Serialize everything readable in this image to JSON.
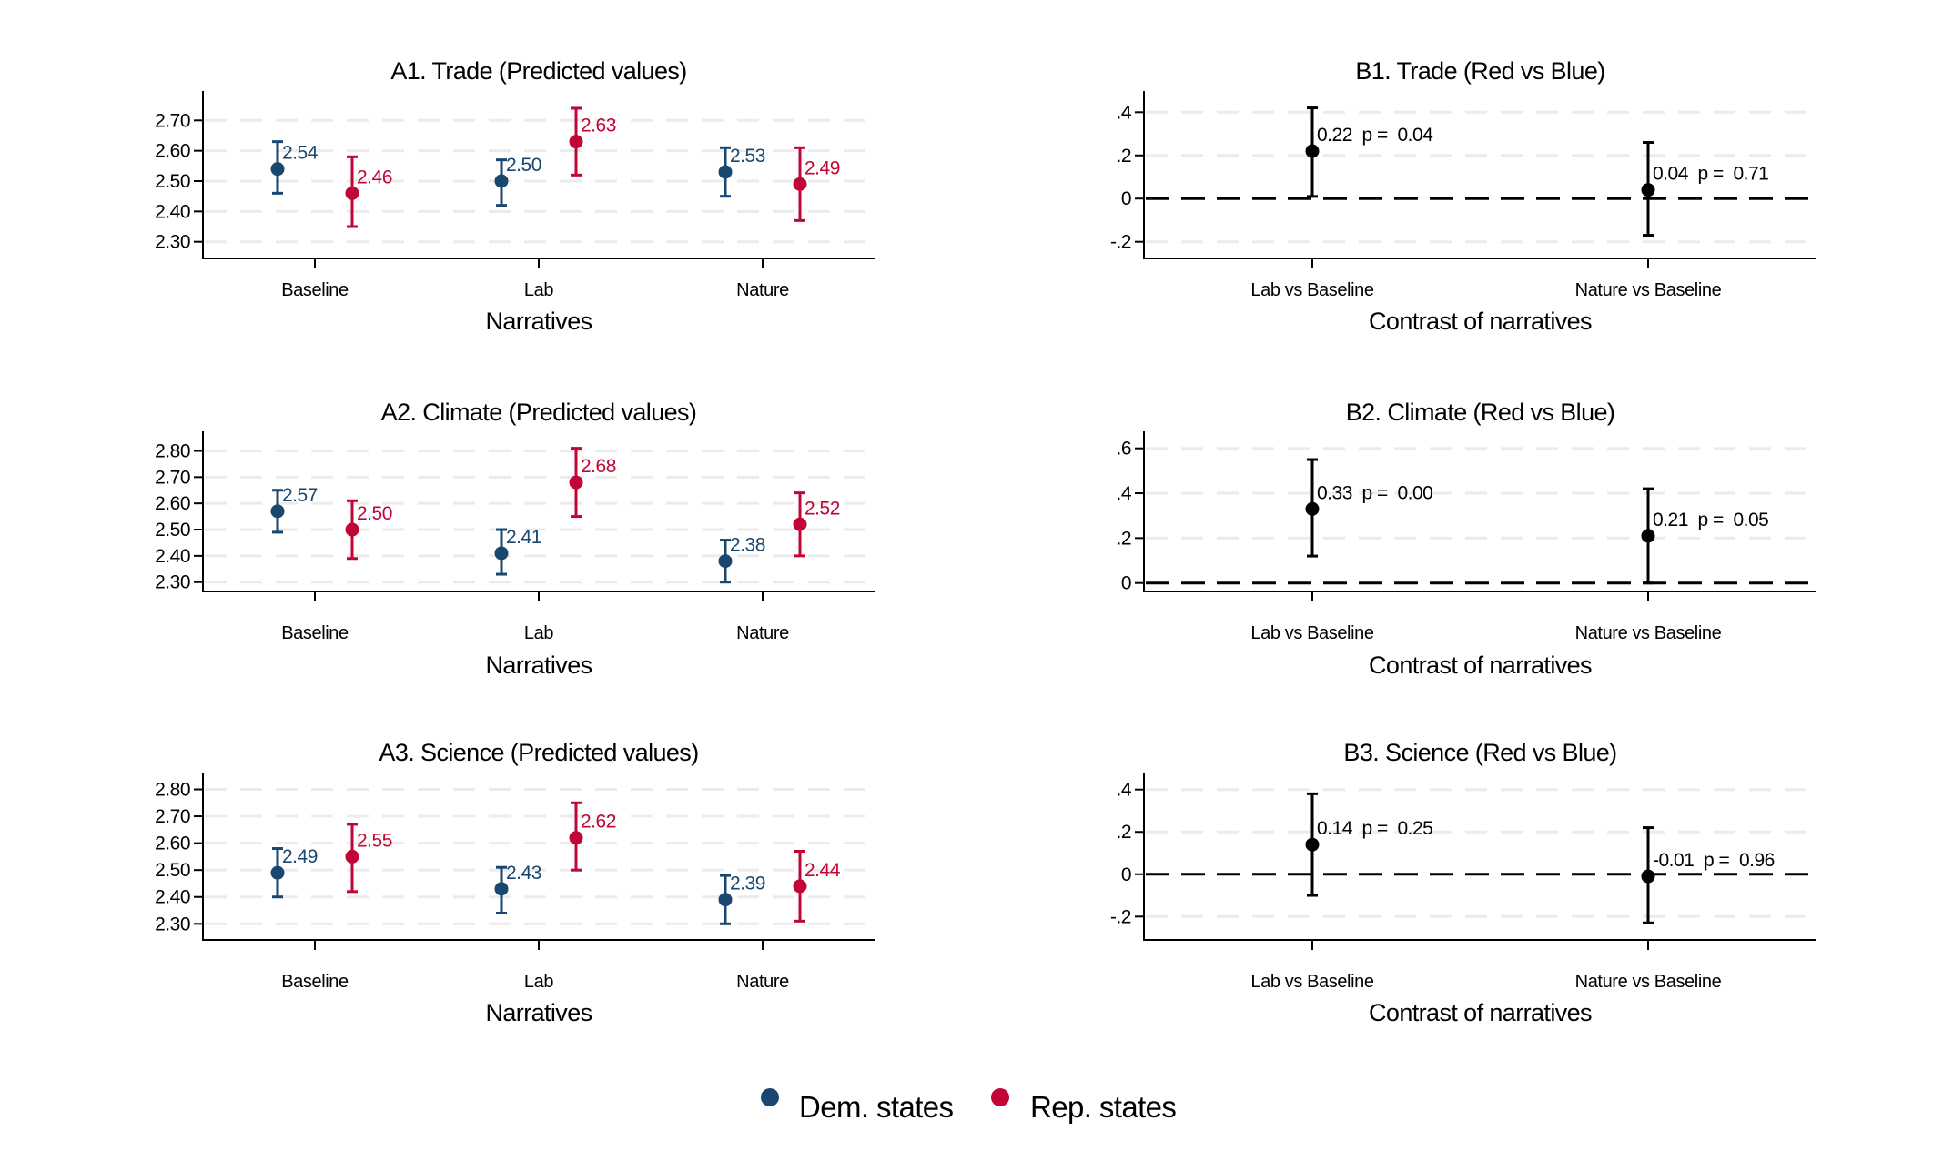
{
  "colors": {
    "dem": "#1a476f",
    "rep": "#c10534",
    "contrast": "#000000"
  },
  "legend": [
    {
      "label": "Dem. states",
      "series": "dem"
    },
    {
      "label": "Rep. states",
      "series": "rep"
    }
  ],
  "chart_data": [
    {
      "id": "A1",
      "type": "scatter-errorbar",
      "title": "A1. Trade (Predicted values)",
      "xlabel": "Narratives",
      "ylabel": "",
      "categories": [
        "Baseline",
        "Lab",
        "Nature"
      ],
      "yticks": [
        2.7,
        2.6,
        2.5,
        2.4,
        2.3
      ],
      "ytick_labels": [
        "2.70",
        "2.60",
        "2.50",
        "2.40",
        "2.30"
      ],
      "grid": true,
      "series": [
        {
          "name": "Dem. states",
          "key": "dem",
          "values": [
            2.54,
            2.5,
            2.53
          ],
          "labels": [
            "2.54",
            "2.50",
            "2.53"
          ],
          "ci_low": [
            2.46,
            2.42,
            2.45
          ],
          "ci_high": [
            2.63,
            2.57,
            2.61
          ]
        },
        {
          "name": "Rep. states",
          "key": "rep",
          "values": [
            2.46,
            2.63,
            2.49
          ],
          "labels": [
            "2.46",
            "2.63",
            "2.49"
          ],
          "ci_low": [
            2.35,
            2.52,
            2.37
          ],
          "ci_high": [
            2.58,
            2.74,
            2.61
          ]
        }
      ]
    },
    {
      "id": "A2",
      "type": "scatter-errorbar",
      "title": "A2. Climate (Predicted values)",
      "xlabel": "Narratives",
      "ylabel": "",
      "categories": [
        "Baseline",
        "Lab",
        "Nature"
      ],
      "yticks": [
        2.8,
        2.7,
        2.6,
        2.5,
        2.4,
        2.3
      ],
      "ytick_labels": [
        "2.80",
        "2.70",
        "2.60",
        "2.50",
        "2.40",
        "2.30"
      ],
      "grid": true,
      "series": [
        {
          "name": "Dem. states",
          "key": "dem",
          "values": [
            2.57,
            2.41,
            2.38
          ],
          "labels": [
            "2.57",
            "2.41",
            "2.38"
          ],
          "ci_low": [
            2.49,
            2.33,
            2.3
          ],
          "ci_high": [
            2.65,
            2.5,
            2.46
          ]
        },
        {
          "name": "Rep. states",
          "key": "rep",
          "values": [
            2.5,
            2.68,
            2.52
          ],
          "labels": [
            "2.50",
            "2.68",
            "2.52"
          ],
          "ci_low": [
            2.39,
            2.55,
            2.4
          ],
          "ci_high": [
            2.61,
            2.81,
            2.64
          ]
        }
      ]
    },
    {
      "id": "A3",
      "type": "scatter-errorbar",
      "title": "A3. Science (Predicted values)",
      "xlabel": "Narratives",
      "ylabel": "",
      "categories": [
        "Baseline",
        "Lab",
        "Nature"
      ],
      "yticks": [
        2.8,
        2.7,
        2.6,
        2.5,
        2.4,
        2.3
      ],
      "ytick_labels": [
        "2.80",
        "2.70",
        "2.60",
        "2.50",
        "2.40",
        "2.30"
      ],
      "grid": true,
      "series": [
        {
          "name": "Dem. states",
          "key": "dem",
          "values": [
            2.49,
            2.43,
            2.39
          ],
          "labels": [
            "2.49",
            "2.43",
            "2.39"
          ],
          "ci_low": [
            2.4,
            2.34,
            2.3
          ],
          "ci_high": [
            2.58,
            2.51,
            2.48
          ]
        },
        {
          "name": "Rep. states",
          "key": "rep",
          "values": [
            2.55,
            2.62,
            2.44
          ],
          "labels": [
            "2.55",
            "2.62",
            "2.44"
          ],
          "ci_low": [
            2.42,
            2.5,
            2.31
          ],
          "ci_high": [
            2.67,
            2.75,
            2.57
          ]
        }
      ]
    },
    {
      "id": "B1",
      "type": "scatter-errorbar",
      "title": "B1. Trade (Red vs Blue)",
      "xlabel": "Contrast of narratives",
      "ylabel": "",
      "categories": [
        "Lab vs Baseline",
        "Nature vs Baseline"
      ],
      "yticks": [
        0.4,
        0.2,
        0,
        -0.2
      ],
      "ytick_labels": [
        ".4",
        ".2",
        "0",
        "-.2"
      ],
      "grid": true,
      "reference_line": 0,
      "series": [
        {
          "name": "Red vs Blue",
          "key": "contrast",
          "values": [
            0.22,
            0.04
          ],
          "labels": [
            "0.22  p =  0.04",
            "0.04  p =  0.71"
          ],
          "p_values": [
            0.04,
            0.71
          ],
          "ci_low": [
            0.01,
            -0.17
          ],
          "ci_high": [
            0.42,
            0.26
          ]
        }
      ]
    },
    {
      "id": "B2",
      "type": "scatter-errorbar",
      "title": "B2. Climate (Red vs Blue)",
      "xlabel": "Contrast of narratives",
      "ylabel": "",
      "categories": [
        "Lab vs Baseline",
        "Nature vs Baseline"
      ],
      "yticks": [
        0.6,
        0.4,
        0.2,
        0
      ],
      "ytick_labels": [
        ".6",
        ".4",
        ".2",
        "0"
      ],
      "grid": true,
      "reference_line": 0,
      "series": [
        {
          "name": "Red vs Blue",
          "key": "contrast",
          "values": [
            0.33,
            0.21
          ],
          "labels": [
            "0.33  p =  0.00",
            "0.21  p =  0.05"
          ],
          "p_values": [
            0.0,
            0.05
          ],
          "ci_low": [
            0.12,
            0.0
          ],
          "ci_high": [
            0.55,
            0.42
          ]
        }
      ]
    },
    {
      "id": "B3",
      "type": "scatter-errorbar",
      "title": "B3. Science (Red vs Blue)",
      "xlabel": "Contrast of narratives",
      "ylabel": "",
      "categories": [
        "Lab vs Baseline",
        "Nature vs Baseline"
      ],
      "yticks": [
        0.4,
        0.2,
        0,
        -0.2
      ],
      "ytick_labels": [
        ".4",
        ".2",
        "0",
        "-.2"
      ],
      "grid": true,
      "reference_line": 0,
      "series": [
        {
          "name": "Red vs Blue",
          "key": "contrast",
          "values": [
            0.14,
            -0.01
          ],
          "labels": [
            "0.14  p =  0.25",
            "-0.01  p =  0.96"
          ],
          "p_values": [
            0.25,
            0.96
          ],
          "ci_low": [
            -0.1,
            -0.23
          ],
          "ci_high": [
            0.38,
            0.22
          ]
        }
      ]
    }
  ]
}
